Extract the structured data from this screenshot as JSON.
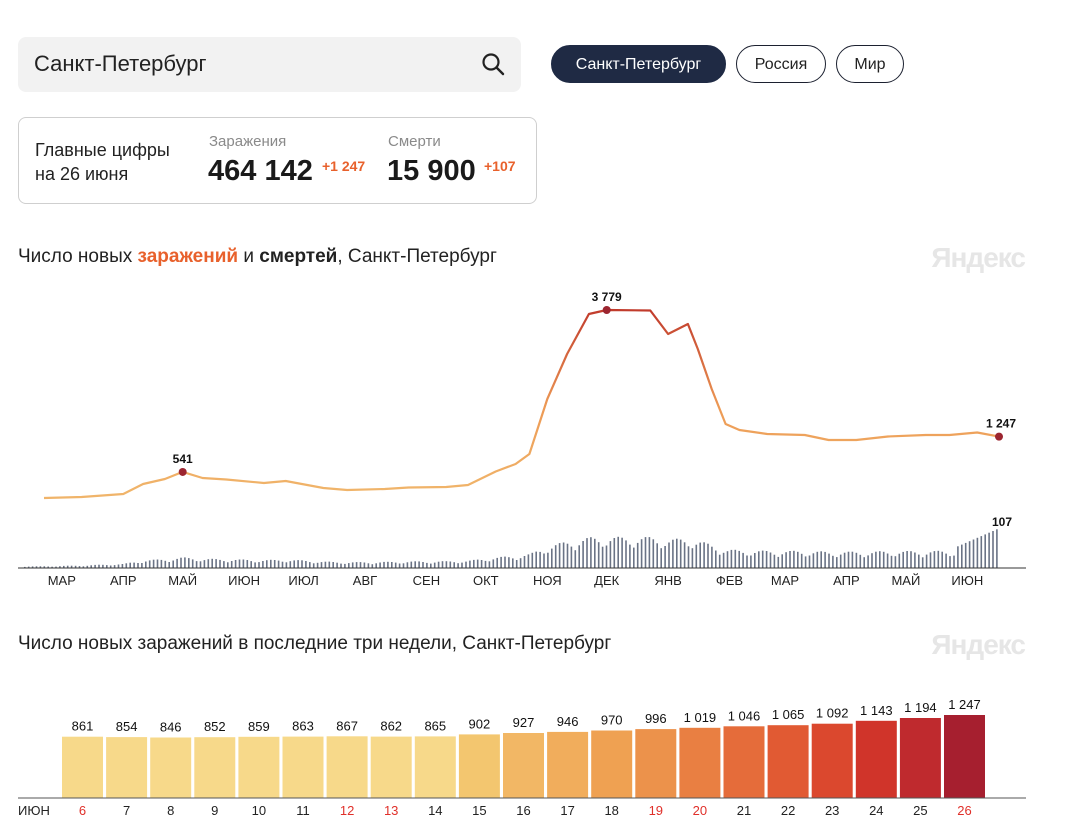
{
  "search": {
    "value": "Санкт-Петербург"
  },
  "region_tabs": [
    {
      "label": "Санкт-Петербург",
      "active": true
    },
    {
      "label": "Россия",
      "active": false
    },
    {
      "label": "Мир",
      "active": false
    }
  ],
  "summary": {
    "title_line1": "Главные цифры",
    "title_line2": "на 26 июня",
    "infections": {
      "label": "Заражения",
      "value": "464 142",
      "delta": "+1 247"
    },
    "deaths": {
      "label": "Смерти",
      "value": "15 900",
      "delta": "+107"
    }
  },
  "chart1": {
    "title_pre": "Число новых ",
    "title_infections": "заражений",
    "title_mid": " и ",
    "title_deaths": "смертей",
    "title_post": ", Санкт-Петербург",
    "watermark": "Яндекс"
  },
  "chart2": {
    "title": "Число новых заражений в последние три недели, Санкт-Петербург",
    "watermark": "Яндекс"
  },
  "colors": {
    "accent": "#e8612c",
    "dark": "#1f2a44",
    "line_low": "#f0b46a",
    "line_high": "#c0392b",
    "deaths_bars": "#6a7385"
  },
  "chart_data": [
    {
      "type": "line",
      "x": [
        "2020-03-01",
        "2020-03-20",
        "2020-04-10",
        "2020-04-20",
        "2020-05-01",
        "2020-05-10",
        "2020-05-20",
        "2020-06-01",
        "2020-06-20",
        "2020-07-01",
        "2020-07-20",
        "2020-08-01",
        "2020-08-20",
        "2020-09-01",
        "2020-09-20",
        "2020-10-01",
        "2020-10-15",
        "2020-10-25",
        "2020-11-01",
        "2020-11-10",
        "2020-11-20",
        "2020-12-01",
        "2020-12-10",
        "2021-01-01",
        "2021-01-10",
        "2021-01-20",
        "2021-01-25",
        "2021-02-01",
        "2021-02-08",
        "2021-02-15",
        "2021-03-01",
        "2021-03-20",
        "2021-04-01",
        "2021-04-15",
        "2021-05-01",
        "2021-05-20",
        "2021-06-01",
        "2021-06-15",
        "2021-06-26"
      ],
      "series": [
        {
          "values": [
            20,
            40,
            100,
            300,
            400,
            541,
            420,
            390,
            320,
            360,
            220,
            180,
            200,
            230,
            240,
            280,
            550,
            700,
            900,
            2000,
            2900,
            3700,
            3779,
            3770,
            3300,
            3500,
            3000,
            2200,
            1500,
            1380,
            1300,
            1280,
            1180,
            1180,
            1250,
            1280,
            1280,
            1330,
            1247
          ]
        }
      ],
      "annotations": [
        {
          "x": "2020-05-10",
          "y": 541,
          "text": "541"
        },
        {
          "x": "2020-12-10",
          "y": 3779,
          "text": "3 779"
        },
        {
          "x": "2021-06-26",
          "y": 1247,
          "text": "1 247"
        }
      ],
      "deaths_annotation": {
        "x": "2021-06-26",
        "y": 107,
        "text": "107"
      },
      "x_tick_labels": [
        "МАР",
        "АПР",
        "МАЙ",
        "ИЮН",
        "ИЮЛ",
        "АВГ",
        "СЕН",
        "ОКТ",
        "НОЯ",
        "ДЕК",
        "ЯНВ",
        "ФЕВ",
        "МАР",
        "АПР",
        "МАЙ",
        "ИЮН"
      ]
    },
    {
      "type": "bar",
      "x_axis_label": "ИЮН",
      "categories": [
        "6",
        "7",
        "8",
        "9",
        "10",
        "11",
        "12",
        "13",
        "14",
        "15",
        "16",
        "17",
        "18",
        "19",
        "20",
        "21",
        "22",
        "23",
        "24",
        "25",
        "26"
      ],
      "values": [
        861,
        854,
        846,
        852,
        859,
        863,
        867,
        862,
        865,
        902,
        927,
        946,
        970,
        996,
        1019,
        1046,
        1065,
        1092,
        1143,
        1194,
        1247
      ],
      "value_labels": [
        "861",
        "854",
        "846",
        "852",
        "859",
        "863",
        "867",
        "862",
        "865",
        "902",
        "927",
        "946",
        "970",
        "996",
        "1 019",
        "1 046",
        "1 065",
        "1 092",
        "1 143",
        "1 194",
        "1 247"
      ],
      "weekend": [
        true,
        false,
        false,
        false,
        false,
        false,
        true,
        true,
        false,
        false,
        false,
        false,
        false,
        true,
        true,
        false,
        false,
        false,
        false,
        false,
        true
      ],
      "colors": [
        "#f7d98a",
        "#f7d98a",
        "#f7d98a",
        "#f7d98a",
        "#f7d98a",
        "#f7d98a",
        "#f7d98a",
        "#f7d98a",
        "#f7d98a",
        "#f3c66f",
        "#f2b765",
        "#f1ad5c",
        "#efa152",
        "#ec924b",
        "#e97f42",
        "#e56c3a",
        "#e15a33",
        "#db482e",
        "#d0342a",
        "#bf2a2e",
        "#a61f2f"
      ]
    }
  ]
}
